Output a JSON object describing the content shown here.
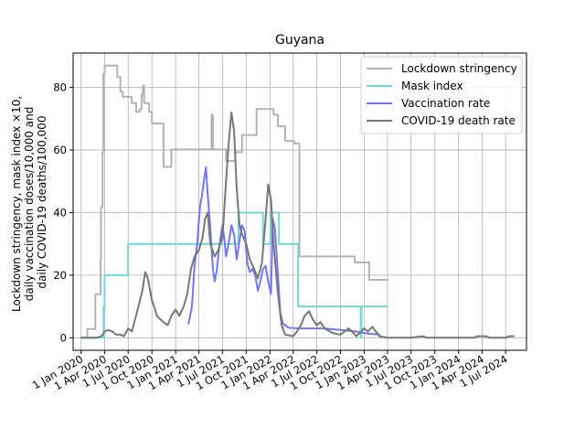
{
  "chart_data": {
    "type": "line",
    "title": "Guyana",
    "ylabel_lines": [
      "Lockdown stringency, mask index ×10,",
      "daily vaccination doses/10,000 and",
      "daily COVID-19 deaths/100,000"
    ],
    "xlim": [
      "2019-12-01",
      "2024-09-20"
    ],
    "ylim": [
      -4,
      91
    ],
    "yticks": [
      0,
      20,
      40,
      60,
      80
    ],
    "xticks": [
      {
        "date": "2020-01-01",
        "label": "1 Jan 2020"
      },
      {
        "date": "2020-04-01",
        "label": "1 Apr 2020"
      },
      {
        "date": "2020-07-01",
        "label": "1 Jul 2020"
      },
      {
        "date": "2020-10-01",
        "label": "1 Oct 2020"
      },
      {
        "date": "2021-01-01",
        "label": "1 Jan 2021"
      },
      {
        "date": "2021-04-01",
        "label": "1 Apr 2021"
      },
      {
        "date": "2021-07-01",
        "label": "1 Jul 2021"
      },
      {
        "date": "2021-10-01",
        "label": "1 Oct 2021"
      },
      {
        "date": "2022-01-01",
        "label": "1 Jan 2022"
      },
      {
        "date": "2022-04-01",
        "label": "1 Apr 2022"
      },
      {
        "date": "2022-07-01",
        "label": "1 Jul 2022"
      },
      {
        "date": "2022-10-01",
        "label": "1 Oct 2022"
      },
      {
        "date": "2023-01-01",
        "label": "1 Jan 2023"
      },
      {
        "date": "2023-04-01",
        "label": "1 Apr 2023"
      },
      {
        "date": "2023-07-01",
        "label": "1 Jul 2023"
      },
      {
        "date": "2023-10-01",
        "label": "1 Oct 2023"
      },
      {
        "date": "2024-01-01",
        "label": "1 Jan 2024"
      },
      {
        "date": "2024-04-01",
        "label": "1 Apr 2024"
      },
      {
        "date": "2024-07-01",
        "label": "1 Jul 2024"
      }
    ],
    "grid": true,
    "legend_position": "top-right",
    "series": [
      {
        "name": "Lockdown stringency",
        "color": "#b3b3b3",
        "step": true,
        "points": [
          [
            "2020-01-01",
            0
          ],
          [
            "2020-01-25",
            2.8
          ],
          [
            "2020-02-20",
            2.8
          ],
          [
            "2020-02-25",
            13.9
          ],
          [
            "2020-03-12",
            13.9
          ],
          [
            "2020-03-16",
            25
          ],
          [
            "2020-03-18",
            41.7
          ],
          [
            "2020-03-24",
            59.3
          ],
          [
            "2020-03-27",
            84.3
          ],
          [
            "2020-04-01",
            87
          ],
          [
            "2020-05-15",
            87
          ],
          [
            "2020-05-20",
            83.3
          ],
          [
            "2020-06-01",
            78.7
          ],
          [
            "2020-06-10",
            77
          ],
          [
            "2020-07-01",
            77
          ],
          [
            "2020-07-15",
            75
          ],
          [
            "2020-08-01",
            72.2
          ],
          [
            "2020-08-15",
            73.1
          ],
          [
            "2020-08-22",
            77.8
          ],
          [
            "2020-08-27",
            80.6
          ],
          [
            "2020-09-01",
            75
          ],
          [
            "2020-09-20",
            72.2
          ],
          [
            "2020-10-01",
            68.5
          ],
          [
            "2020-11-10",
            68.5
          ],
          [
            "2020-11-15",
            54.6
          ],
          [
            "2020-12-10",
            54.6
          ],
          [
            "2020-12-15",
            60.2
          ],
          [
            "2021-04-01",
            60.2
          ],
          [
            "2021-05-15",
            60.2
          ],
          [
            "2021-05-20",
            71.3
          ],
          [
            "2021-05-25",
            60.2
          ],
          [
            "2021-07-10",
            60.2
          ],
          [
            "2021-07-15",
            56.5
          ],
          [
            "2021-08-15",
            56.5
          ],
          [
            "2021-08-20",
            59.3
          ],
          [
            "2021-09-10",
            59.3
          ],
          [
            "2021-09-15",
            64.8
          ],
          [
            "2021-11-01",
            64.8
          ],
          [
            "2021-11-10",
            73.1
          ],
          [
            "2022-01-15",
            71.3
          ],
          [
            "2022-02-01",
            67.6
          ],
          [
            "2022-03-01",
            62.9
          ],
          [
            "2022-04-05",
            62.1
          ],
          [
            "2022-04-20",
            62.1
          ],
          [
            "2022-04-25",
            26
          ],
          [
            "2022-11-20",
            26
          ],
          [
            "2022-11-25",
            24.1
          ],
          [
            "2023-01-15",
            24.1
          ],
          [
            "2023-01-20",
            18.5
          ],
          [
            "2023-04-01",
            18.5
          ]
        ]
      },
      {
        "name": "Mask index",
        "color": "#72d7d2",
        "step": true,
        "points": [
          [
            "2020-01-01",
            0
          ],
          [
            "2020-03-25",
            0
          ],
          [
            "2020-03-28",
            10
          ],
          [
            "2020-04-01",
            20
          ],
          [
            "2020-06-25",
            20
          ],
          [
            "2020-07-01",
            30
          ],
          [
            "2021-08-15",
            30
          ],
          [
            "2021-09-01",
            40
          ],
          [
            "2021-12-01",
            40
          ],
          [
            "2021-12-05",
            30
          ],
          [
            "2022-01-01",
            30
          ],
          [
            "2022-01-05",
            40
          ],
          [
            "2022-02-01",
            40
          ],
          [
            "2022-02-05",
            30
          ],
          [
            "2022-04-15",
            30
          ],
          [
            "2022-04-20",
            10
          ],
          [
            "2022-12-15",
            10
          ],
          [
            "2022-12-18",
            0
          ],
          [
            "2022-12-21",
            10
          ],
          [
            "2023-04-01",
            10
          ]
        ]
      },
      {
        "name": "Vaccination rate",
        "color": "#7575f0",
        "step": false,
        "points": [
          [
            "2021-02-20",
            4.5
          ],
          [
            "2021-03-05",
            10
          ],
          [
            "2021-03-15",
            23
          ],
          [
            "2021-03-25",
            30
          ],
          [
            "2021-04-05",
            42
          ],
          [
            "2021-04-12",
            45
          ],
          [
            "2021-04-20",
            50
          ],
          [
            "2021-04-28",
            54.5
          ],
          [
            "2021-05-05",
            46
          ],
          [
            "2021-05-15",
            35
          ],
          [
            "2021-05-25",
            22
          ],
          [
            "2021-06-01",
            18
          ],
          [
            "2021-06-10",
            22
          ],
          [
            "2021-06-20",
            30
          ],
          [
            "2021-07-01",
            36
          ],
          [
            "2021-07-08",
            32
          ],
          [
            "2021-07-15",
            26
          ],
          [
            "2021-07-25",
            30
          ],
          [
            "2021-08-05",
            36
          ],
          [
            "2021-08-15",
            33
          ],
          [
            "2021-08-25",
            25
          ],
          [
            "2021-09-05",
            31
          ],
          [
            "2021-09-15",
            36
          ],
          [
            "2021-09-25",
            34
          ],
          [
            "2021-10-05",
            24
          ],
          [
            "2021-10-15",
            21
          ],
          [
            "2021-10-25",
            22
          ],
          [
            "2021-11-05",
            20
          ],
          [
            "2021-11-15",
            15
          ],
          [
            "2021-11-25",
            18
          ],
          [
            "2021-12-05",
            22
          ],
          [
            "2021-12-15",
            23
          ],
          [
            "2021-12-25",
            18
          ],
          [
            "2022-01-05",
            14
          ],
          [
            "2022-01-12",
            38
          ],
          [
            "2022-01-20",
            35
          ],
          [
            "2022-02-01",
            20
          ],
          [
            "2022-02-10",
            8
          ],
          [
            "2022-02-20",
            4.5
          ],
          [
            "2022-03-15",
            3.2
          ],
          [
            "2022-05-01",
            3
          ],
          [
            "2022-06-01",
            3
          ],
          [
            "2022-08-01",
            3
          ],
          [
            "2022-10-01",
            2.5
          ],
          [
            "2022-12-01",
            2
          ],
          [
            "2023-01-01",
            1.5
          ],
          [
            "2023-03-01",
            1
          ]
        ]
      },
      {
        "name": "COVID-19 death rate",
        "color": "#777777",
        "step": false,
        "points": [
          [
            "2020-01-01",
            0
          ],
          [
            "2020-03-01",
            0
          ],
          [
            "2020-03-20",
            0.5
          ],
          [
            "2020-04-01",
            2
          ],
          [
            "2020-04-15",
            2.5
          ],
          [
            "2020-05-01",
            2
          ],
          [
            "2020-05-15",
            1
          ],
          [
            "2020-06-01",
            1
          ],
          [
            "2020-06-15",
            0.5
          ],
          [
            "2020-07-01",
            3
          ],
          [
            "2020-07-15",
            2
          ],
          [
            "2020-07-25",
            5
          ],
          [
            "2020-08-10",
            10
          ],
          [
            "2020-08-25",
            15
          ],
          [
            "2020-09-05",
            21
          ],
          [
            "2020-09-15",
            19
          ],
          [
            "2020-10-01",
            12
          ],
          [
            "2020-10-10",
            10
          ],
          [
            "2020-10-20",
            7
          ],
          [
            "2020-11-01",
            6
          ],
          [
            "2020-11-15",
            5
          ],
          [
            "2020-12-01",
            4
          ],
          [
            "2020-12-15",
            7
          ],
          [
            "2021-01-01",
            9
          ],
          [
            "2021-01-15",
            7
          ],
          [
            "2021-02-01",
            10
          ],
          [
            "2021-02-15",
            14
          ],
          [
            "2021-03-01",
            22
          ],
          [
            "2021-03-15",
            26
          ],
          [
            "2021-04-01",
            28
          ],
          [
            "2021-04-15",
            32
          ],
          [
            "2021-04-25",
            38
          ],
          [
            "2021-05-05",
            40
          ],
          [
            "2021-05-15",
            30
          ],
          [
            "2021-06-01",
            26
          ],
          [
            "2021-06-15",
            28
          ],
          [
            "2021-07-01",
            32
          ],
          [
            "2021-07-15",
            50
          ],
          [
            "2021-07-25",
            62
          ],
          [
            "2021-08-05",
            72
          ],
          [
            "2021-08-15",
            66
          ],
          [
            "2021-08-25",
            48
          ],
          [
            "2021-09-05",
            36
          ],
          [
            "2021-09-15",
            33
          ],
          [
            "2021-10-01",
            30
          ],
          [
            "2021-10-15",
            25
          ],
          [
            "2021-11-01",
            22
          ],
          [
            "2021-11-15",
            19
          ],
          [
            "2021-12-01",
            24
          ],
          [
            "2021-12-15",
            38
          ],
          [
            "2021-12-25",
            49
          ],
          [
            "2022-01-05",
            44
          ],
          [
            "2022-01-15",
            30
          ],
          [
            "2022-02-01",
            14
          ],
          [
            "2022-02-15",
            4
          ],
          [
            "2022-03-01",
            1
          ],
          [
            "2022-04-01",
            0.5
          ],
          [
            "2022-04-15",
            2
          ],
          [
            "2022-05-01",
            4
          ],
          [
            "2022-05-15",
            7
          ],
          [
            "2022-06-01",
            8.5
          ],
          [
            "2022-06-15",
            6
          ],
          [
            "2022-07-01",
            4
          ],
          [
            "2022-07-15",
            5
          ],
          [
            "2022-08-01",
            3
          ],
          [
            "2022-09-01",
            1.5
          ],
          [
            "2022-10-01",
            1
          ],
          [
            "2022-11-01",
            3
          ],
          [
            "2022-11-15",
            2
          ],
          [
            "2022-12-01",
            0.5
          ],
          [
            "2023-01-01",
            3
          ],
          [
            "2023-01-15",
            2
          ],
          [
            "2023-02-01",
            3.5
          ],
          [
            "2023-02-15",
            2
          ],
          [
            "2023-03-01",
            0.5
          ],
          [
            "2023-04-01",
            0
          ],
          [
            "2023-07-01",
            0
          ],
          [
            "2023-08-15",
            0.5
          ],
          [
            "2023-09-01",
            0
          ],
          [
            "2024-03-01",
            0
          ],
          [
            "2024-03-15",
            0.5
          ],
          [
            "2024-04-15",
            0.5
          ],
          [
            "2024-05-01",
            0
          ],
          [
            "2024-07-01",
            0
          ],
          [
            "2024-07-15",
            0.5
          ],
          [
            "2024-08-01",
            0.5
          ]
        ]
      }
    ]
  }
}
